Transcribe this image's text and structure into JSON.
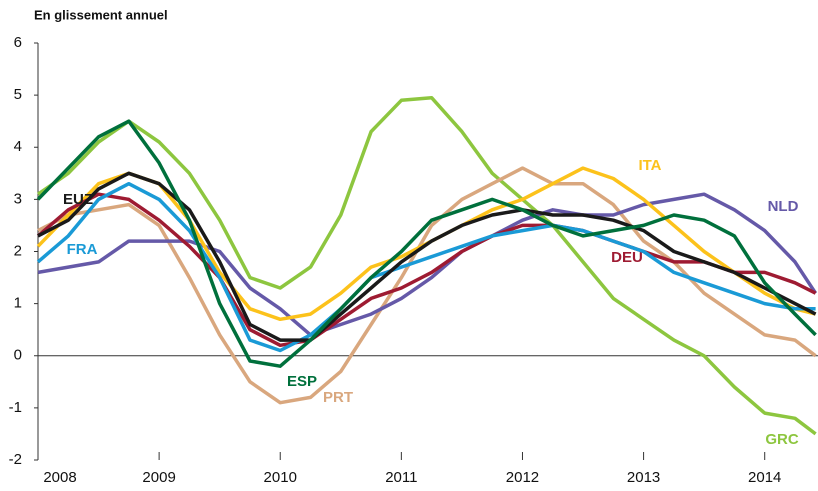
{
  "chart_data": {
    "type": "line",
    "title": "En glissement annuel",
    "x": [
      2008,
      2008.25,
      2008.5,
      2008.75,
      2009,
      2009.25,
      2009.5,
      2009.75,
      2010,
      2010.25,
      2010.5,
      2010.75,
      2011,
      2011.25,
      2011.5,
      2011.75,
      2012,
      2012.25,
      2012.5,
      2012.75,
      2013,
      2013.25,
      2013.5,
      2013.75,
      2014,
      2014.25,
      2014.42
    ],
    "xlim": [
      2008,
      2014.44
    ],
    "xticks": [
      2008,
      2009,
      2010,
      2011,
      2012,
      2013,
      2014
    ],
    "ylim": [
      -2,
      6
    ],
    "yticks": [
      -2,
      -1,
      0,
      1,
      2,
      3,
      4,
      5,
      6
    ],
    "series": [
      {
        "name": "GRC",
        "color": "#8dc63f",
        "values": [
          3.1,
          3.5,
          4.1,
          4.5,
          4.1,
          3.5,
          2.6,
          1.5,
          1.3,
          1.7,
          2.7,
          4.3,
          4.9,
          4.95,
          4.3,
          3.5,
          3.0,
          2.5,
          1.8,
          1.1,
          0.7,
          0.3,
          0.0,
          -0.6,
          -1.1,
          -1.2,
          -1.5
        ]
      },
      {
        "name": "PRT",
        "color": "#d9a77e",
        "values": [
          2.4,
          2.7,
          2.8,
          2.9,
          2.5,
          1.5,
          0.4,
          -0.5,
          -0.9,
          -0.8,
          -0.3,
          0.6,
          1.5,
          2.5,
          3.0,
          3.3,
          3.6,
          3.3,
          3.3,
          2.9,
          2.2,
          1.8,
          1.2,
          0.8,
          0.4,
          0.3,
          0.0
        ]
      },
      {
        "name": "NLD",
        "color": "#6559a8",
        "values": [
          1.6,
          1.7,
          1.8,
          2.2,
          2.2,
          2.2,
          2.0,
          1.3,
          0.9,
          0.4,
          0.6,
          0.8,
          1.1,
          1.5,
          2.0,
          2.3,
          2.6,
          2.8,
          2.7,
          2.7,
          2.9,
          3.0,
          3.1,
          2.8,
          2.4,
          1.8,
          1.2
        ]
      },
      {
        "name": "ITA",
        "color": "#fcc21b",
        "values": [
          2.1,
          2.7,
          3.3,
          3.5,
          3.3,
          2.6,
          1.6,
          0.9,
          0.7,
          0.8,
          1.2,
          1.7,
          1.9,
          2.2,
          2.5,
          2.8,
          3.0,
          3.3,
          3.6,
          3.4,
          3.0,
          2.5,
          2.0,
          1.6,
          1.2,
          0.9,
          0.8
        ]
      },
      {
        "name": "DEU",
        "color": "#9e1b32",
        "values": [
          2.3,
          2.8,
          3.1,
          3.0,
          2.6,
          2.1,
          1.5,
          0.5,
          0.2,
          0.3,
          0.7,
          1.1,
          1.3,
          1.6,
          2.0,
          2.3,
          2.5,
          2.5,
          2.4,
          2.2,
          2.0,
          1.8,
          1.8,
          1.6,
          1.6,
          1.4,
          1.2
        ]
      },
      {
        "name": "FRA",
        "color": "#1a9ad6",
        "values": [
          1.8,
          2.3,
          3.0,
          3.3,
          3.0,
          2.4,
          1.5,
          0.3,
          0.1,
          0.4,
          0.9,
          1.5,
          1.7,
          1.9,
          2.1,
          2.3,
          2.4,
          2.5,
          2.4,
          2.2,
          2.0,
          1.6,
          1.4,
          1.2,
          1.0,
          0.9,
          0.9
        ]
      },
      {
        "name": "EUZ",
        "color": "#1a1a1a",
        "values": [
          2.3,
          2.6,
          3.2,
          3.5,
          3.3,
          2.8,
          1.8,
          0.6,
          0.3,
          0.3,
          0.8,
          1.3,
          1.8,
          2.2,
          2.5,
          2.7,
          2.8,
          2.7,
          2.7,
          2.6,
          2.4,
          2.0,
          1.8,
          1.6,
          1.3,
          1.0,
          0.8
        ]
      },
      {
        "name": "ESP",
        "color": "#00703c",
        "values": [
          3.0,
          3.6,
          4.2,
          4.5,
          3.7,
          2.6,
          1.0,
          -0.1,
          -0.2,
          0.3,
          0.9,
          1.5,
          2.0,
          2.6,
          2.8,
          3.0,
          2.8,
          2.5,
          2.3,
          2.4,
          2.5,
          2.7,
          2.6,
          2.3,
          1.4,
          0.8,
          0.4
        ]
      }
    ]
  }
}
